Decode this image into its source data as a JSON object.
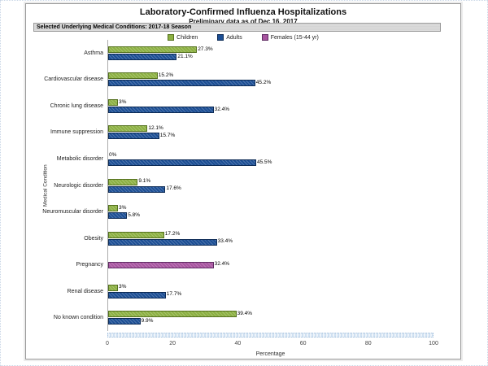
{
  "page": {
    "panel_header": "Selected Underlying Medical Conditions: 2017-18 Season"
  },
  "chart_data": {
    "type": "bar",
    "orientation": "horizontal",
    "title": "Laboratory-Confirmed Influenza Hospitalizations",
    "subtitle": "Preliminary data as of Dec 16, 2017",
    "xlabel": "Percentage",
    "ylabel": "Medical Condition",
    "xlim": [
      0,
      100
    ],
    "xticks": [
      0,
      20,
      40,
      60,
      80,
      100
    ],
    "grid": false,
    "legend_position": "top",
    "legend": [
      {
        "name": "Children",
        "color": "#8CB042",
        "border": "#55711F"
      },
      {
        "name": "Adults",
        "color": "#1C4E94",
        "border": "#0D2B56"
      },
      {
        "name": "Females (15-44 yr)",
        "color": "#A855A0",
        "border": "#5E2B62"
      }
    ],
    "rows": [
      {
        "category": "Asthma",
        "bars": [
          {
            "series": "Children",
            "value": 27.3,
            "label": "27.3%"
          },
          {
            "series": "Adults",
            "value": 21.1,
            "label": "21.1%"
          }
        ]
      },
      {
        "category": "Cardiovascular disease",
        "bars": [
          {
            "series": "Children",
            "value": 15.2,
            "label": "15.2%"
          },
          {
            "series": "Adults",
            "value": 45.2,
            "label": "45.2%"
          }
        ]
      },
      {
        "category": "Chronic lung disease",
        "bars": [
          {
            "series": "Children",
            "value": 3,
            "label": "3%"
          },
          {
            "series": "Adults",
            "value": 32.4,
            "label": "32.4%"
          }
        ]
      },
      {
        "category": "Immune suppression",
        "bars": [
          {
            "series": "Children",
            "value": 12.1,
            "label": "12.1%"
          },
          {
            "series": "Adults",
            "value": 15.7,
            "label": "15.7%"
          }
        ]
      },
      {
        "category": "Metabolic disorder",
        "bars": [
          {
            "series": "Children",
            "value": 0,
            "label": "0%"
          },
          {
            "series": "Adults",
            "value": 45.5,
            "label": "45.5%"
          }
        ]
      },
      {
        "category": "Neurologic disorder",
        "bars": [
          {
            "series": "Children",
            "value": 9.1,
            "label": "9.1%"
          },
          {
            "series": "Adults",
            "value": 17.6,
            "label": "17.6%"
          }
        ]
      },
      {
        "category": "Neuromuscular disorder",
        "bars": [
          {
            "series": "Children",
            "value": 3,
            "label": "3%"
          },
          {
            "series": "Adults",
            "value": 5.8,
            "label": "5.8%"
          }
        ]
      },
      {
        "category": "Obesity",
        "bars": [
          {
            "series": "Children",
            "value": 17.2,
            "label": "17.2%"
          },
          {
            "series": "Adults",
            "value": 33.4,
            "label": "33.4%"
          }
        ]
      },
      {
        "category": "Pregnancy",
        "bars": [
          {
            "series": "Females (15-44 yr)",
            "value": 32.4,
            "label": "32.4%"
          }
        ]
      },
      {
        "category": "Renal disease",
        "bars": [
          {
            "series": "Children",
            "value": 3,
            "label": "3%"
          },
          {
            "series": "Adults",
            "value": 17.7,
            "label": "17.7%"
          }
        ]
      },
      {
        "category": "No known condition",
        "bars": [
          {
            "series": "Children",
            "value": 39.4,
            "label": "39.4%"
          },
          {
            "series": "Adults",
            "value": 9.9,
            "label": "9.9%"
          }
        ]
      }
    ]
  }
}
